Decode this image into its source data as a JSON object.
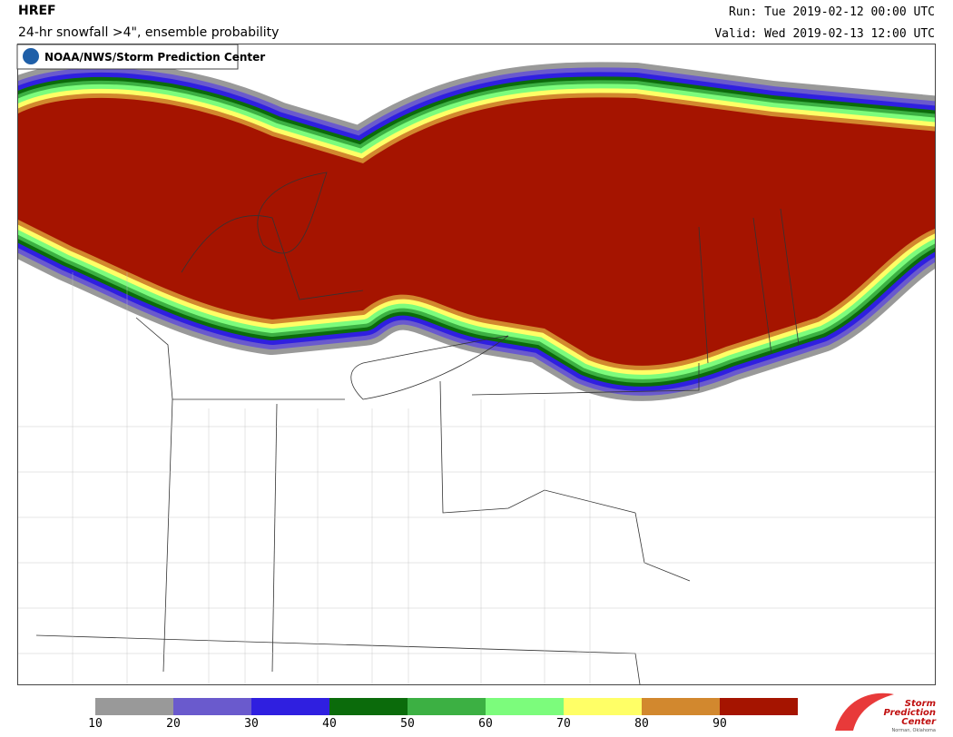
{
  "header": {
    "model": "HREF",
    "product": "24-hr snowfall >4\", ensemble probability",
    "run": "Run: Tue 2019-02-12 00:00 UTC",
    "valid": "Valid: Wed 2019-02-13 12:00 UTC",
    "badge": "NOAA/NWS/Storm Prediction Center"
  },
  "logo": {
    "line1": "Storm",
    "line2": "Prediction",
    "line3": "Center",
    "place": "Norman, Oklahoma"
  },
  "legend": {
    "ticks": [
      10,
      20,
      30,
      40,
      50,
      60,
      70,
      80,
      90
    ],
    "colors": [
      "#999999",
      "#6a5acd",
      "#2f1fe0",
      "#0b6b0b",
      "#3cb043",
      "#7cfc7c",
      "#ffff66",
      "#d2882e",
      "#a51400"
    ]
  }
}
